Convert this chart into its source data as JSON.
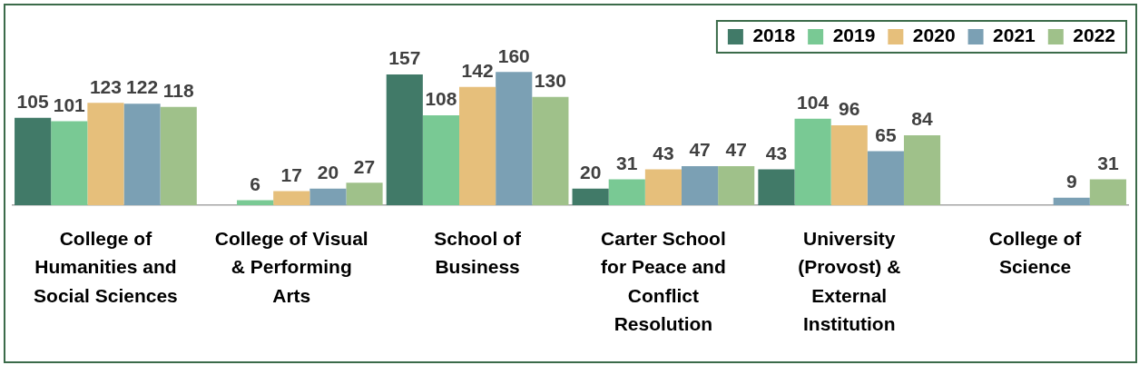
{
  "chart_data": {
    "type": "bar",
    "categories": [
      "College of Humanities and Social Sciences",
      "College of Visual & Performing Arts",
      "School of Business",
      "Carter School for Peace and Conflict Resolution",
      "University (Provost) & External Institution",
      "College of Science"
    ],
    "series": [
      {
        "name": "2018",
        "color": "#417a68",
        "values": [
          105,
          null,
          157,
          20,
          43,
          null
        ]
      },
      {
        "name": "2019",
        "color": "#79c994",
        "values": [
          101,
          6,
          108,
          31,
          104,
          null
        ]
      },
      {
        "name": "2020",
        "color": "#e6bf7b",
        "values": [
          123,
          17,
          142,
          43,
          96,
          null
        ]
      },
      {
        "name": "2021",
        "color": "#7ba0b4",
        "values": [
          122,
          20,
          160,
          47,
          65,
          9
        ]
      },
      {
        "name": "2022",
        "color": "#9fc18a",
        "values": [
          118,
          27,
          130,
          47,
          84,
          31
        ]
      }
    ],
    "data_labels": true,
    "grid": false,
    "legend": "top right",
    "tick_labels": "x"
  }
}
